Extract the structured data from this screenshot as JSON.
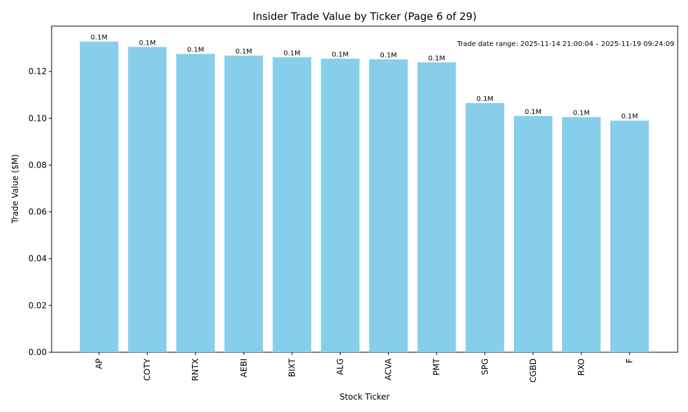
{
  "chart_data": {
    "type": "bar",
    "title": "Insider Trade Value by Ticker (Page 6 of 29)",
    "xlabel": "Stock Ticker",
    "ylabel": "Trade Value ($M)",
    "annotation": "Trade date range: 2025-11-14 21:00:04 – 2025-11-19 09:24:09",
    "categories": [
      "AP",
      "COTY",
      "RNTX",
      "AEBI",
      "BIXT",
      "ALG",
      "ACVA",
      "PMT",
      "SPG",
      "CGBD",
      "RXO",
      "F"
    ],
    "values": [
      0.1328,
      0.1305,
      0.1275,
      0.1268,
      0.1261,
      0.1255,
      0.1252,
      0.1239,
      0.1065,
      0.101,
      0.1005,
      0.099
    ],
    "data_labels": [
      "0.1M",
      "0.1M",
      "0.1M",
      "0.1M",
      "0.1M",
      "0.1M",
      "0.1M",
      "0.1M",
      "0.1M",
      "0.1M",
      "0.1M",
      "0.1M"
    ],
    "ylim": [
      0,
      0.1394
    ],
    "yticks": [
      0.0,
      0.02,
      0.04,
      0.06,
      0.08,
      0.1,
      0.12
    ],
    "ytick_labels": [
      "0.00",
      "0.02",
      "0.04",
      "0.06",
      "0.08",
      "0.10",
      "0.12"
    ],
    "bar_color": "#87CEEB",
    "grid": false,
    "legend": "none"
  }
}
